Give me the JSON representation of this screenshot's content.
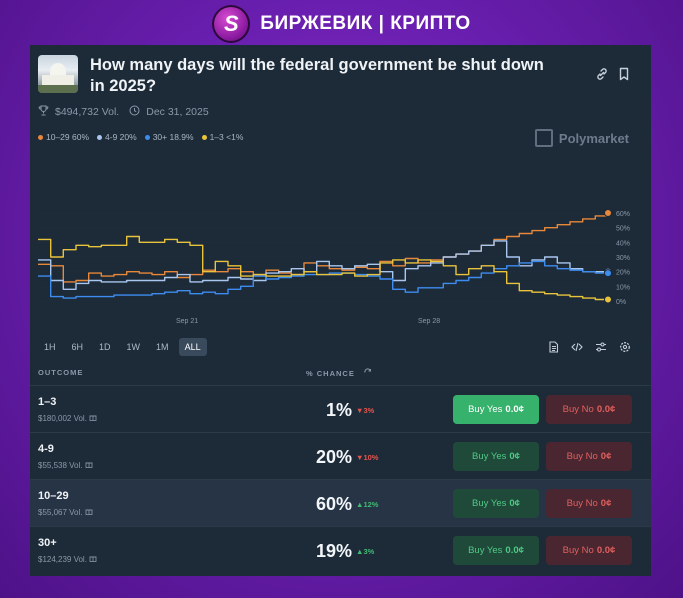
{
  "brand": {
    "name": "БИРЖЕВИК | КРИПТО",
    "logo_letter": "S"
  },
  "market": {
    "title": "How many days will the federal government be shut down in 2025?",
    "volume": "$494,732 Vol.",
    "end_date": "Dec 31, 2025",
    "source": "Polymarket"
  },
  "legend": [
    {
      "label": "10–29 60%",
      "color": "#e8883a"
    },
    {
      "label": "4-9 20%",
      "color": "#a9c6ef"
    },
    {
      "label": "30+ 18.9%",
      "color": "#3d8cf0"
    },
    {
      "label": "1–3 <1%",
      "color": "#e9c33b"
    }
  ],
  "chart_data": {
    "type": "line",
    "x_ticks": [
      "Sep 21",
      "Sep 28"
    ],
    "y_ticks": [
      "60%",
      "50%",
      "40%",
      "30%",
      "20%",
      "10%",
      "0%"
    ],
    "ylim": [
      0,
      60
    ],
    "series": [
      {
        "name": "10–29",
        "color": "#e8883a",
        "values": [
          25,
          24,
          13,
          14,
          19,
          17,
          18,
          20,
          19,
          18,
          20,
          16,
          18,
          21,
          20,
          22,
          20,
          18,
          21,
          19,
          18,
          26,
          24,
          22,
          21,
          23,
          22,
          27,
          24,
          29,
          26,
          28,
          30,
          32,
          34,
          38,
          42,
          44,
          46,
          48,
          50,
          52,
          54,
          56,
          58,
          60
        ]
      },
      {
        "name": "4-9",
        "color": "#a9c6ef",
        "values": [
          28,
          14,
          8,
          12,
          14,
          13,
          13,
          14,
          14,
          14,
          16,
          18,
          13,
          14,
          14,
          16,
          15,
          14,
          19,
          20,
          22,
          20,
          27,
          24,
          22,
          24,
          25,
          20,
          14,
          22,
          24,
          26,
          30,
          32,
          34,
          38,
          41,
          30,
          24,
          28,
          30,
          26,
          22,
          20,
          20,
          20
        ]
      },
      {
        "name": "30+",
        "color": "#3d8cf0",
        "values": [
          17,
          3,
          2,
          3,
          3,
          3,
          4,
          4,
          4,
          5,
          6,
          7,
          5,
          6,
          5,
          8,
          10,
          17,
          15,
          16,
          17,
          18,
          18,
          19,
          19,
          18,
          17,
          15,
          8,
          6,
          9,
          9,
          12,
          14,
          16,
          19,
          22,
          24,
          26,
          27,
          24,
          22,
          21,
          20,
          19,
          19
        ]
      },
      {
        "name": "1–3",
        "color": "#e9c33b",
        "values": [
          42,
          30,
          35,
          38,
          37,
          38,
          38,
          44,
          40,
          40,
          42,
          40,
          38,
          20,
          27,
          24,
          17,
          18,
          17,
          17,
          18,
          20,
          18,
          18,
          19,
          17,
          18,
          26,
          28,
          26,
          28,
          27,
          24,
          18,
          22,
          24,
          20,
          12,
          7,
          6,
          5,
          4,
          3,
          2,
          1,
          1
        ]
      }
    ]
  },
  "timeframes": [
    "1H",
    "6H",
    "1D",
    "1W",
    "1M",
    "ALL"
  ],
  "active_timeframe": "ALL",
  "table": {
    "col_outcome": "OUTCOME",
    "col_chance": "% CHANCE",
    "rows": [
      {
        "name": "1–3",
        "vol": "$180,002 Vol.",
        "pct": "1%",
        "chg": "3%",
        "dir": "down",
        "yes": "Buy Yes",
        "yes_price": "0.0¢",
        "no": "Buy No",
        "no_price": "0.0¢",
        "solid": true
      },
      {
        "name": "4-9",
        "vol": "$55,538 Vol.",
        "pct": "20%",
        "chg": "10%",
        "dir": "down",
        "yes": "Buy Yes",
        "yes_price": "0¢",
        "no": "Buy No",
        "no_price": "0¢",
        "solid": false
      },
      {
        "name": "10–29",
        "vol": "$55,067 Vol.",
        "pct": "60%",
        "chg": "12%",
        "dir": "up",
        "yes": "Buy Yes",
        "yes_price": "0¢",
        "no": "Buy No",
        "no_price": "0¢",
        "solid": false
      },
      {
        "name": "30+",
        "vol": "$124,239 Vol.",
        "pct": "19%",
        "chg": "3%",
        "dir": "up",
        "yes": "Buy Yes",
        "yes_price": "0.0¢",
        "no": "Buy No",
        "no_price": "0.0¢",
        "solid": false
      }
    ]
  }
}
